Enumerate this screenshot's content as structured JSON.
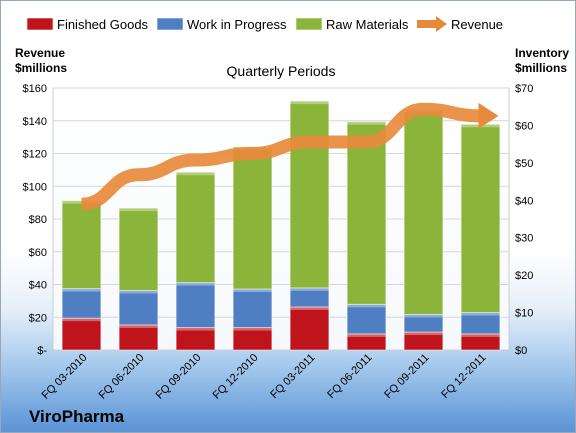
{
  "company": "ViroPharma",
  "chart_data": {
    "type": "bar",
    "title": "Quarterly Periods",
    "ylabel_left": "Revenue\n$millions",
    "ylabel_right": "Inventory\n$millions",
    "categories": [
      "FQ 03-2010",
      "FQ 06-2010",
      "FQ 09-2010",
      "FQ 12-2010",
      "FQ 03-2011",
      "FQ 06-2011",
      "FQ 09-2011",
      "FQ 12-2011"
    ],
    "stacked": true,
    "axis_series": "right",
    "series": [
      {
        "name": "Finished Goods",
        "color": "#c0141c",
        "values": [
          8.5,
          6.7,
          6.0,
          6.0,
          11.5,
          4.3,
          4.8,
          4.3
        ]
      },
      {
        "name": "Work in Progress",
        "color": "#4f7fc2",
        "values": [
          7.9,
          9.2,
          12.0,
          10.3,
          5.1,
          7.9,
          4.7,
          5.7
        ]
      },
      {
        "name": "Raw Materials",
        "color": "#8ab43a",
        "values": [
          23.5,
          22.0,
          29.5,
          38.0,
          49.9,
          48.8,
          54.8,
          50.3
        ]
      }
    ],
    "line_series": {
      "name": "Revenue",
      "color": "#e88a3c",
      "axis": "left",
      "values": [
        89,
        107,
        116,
        120,
        127,
        127,
        147,
        143
      ]
    },
    "y_left": {
      "min": 0,
      "max": 160,
      "step": 20,
      "ticks": [
        "$-",
        "$20",
        "$40",
        "$60",
        "$80",
        "$100",
        "$120",
        "$140",
        "$160"
      ]
    },
    "y_right": {
      "min": 0,
      "max": 70,
      "step": 10,
      "ticks": [
        "$0",
        "$10",
        "$20",
        "$30",
        "$40",
        "$50",
        "$60",
        "$70"
      ]
    },
    "legend_position": "top"
  }
}
